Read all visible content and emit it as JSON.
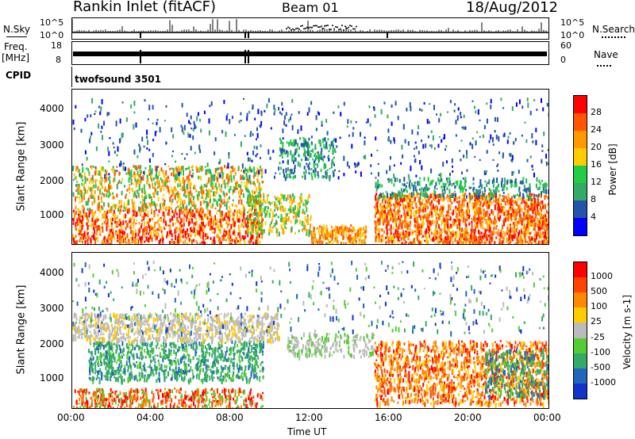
{
  "header": {
    "station": "Rankin Inlet (fitACF)",
    "beam": "Beam 01",
    "date": "18/Aug/2012"
  },
  "top_panels": {
    "nsky_label": "N.Sky",
    "nsky_ticks": [
      "10^5",
      "10^0"
    ],
    "nsearch_label": "N.Search",
    "nsearch_ticks": [
      "10^5",
      "10^0"
    ],
    "freq_label": "Freq.",
    "freq_unit": "[MHz]",
    "freq_ticks": [
      "18",
      "8"
    ],
    "nave_label": "Nave",
    "nave_ticks": [
      "60",
      "0"
    ],
    "cpid_label": "CPID",
    "cpid_value": "twofsound 3501"
  },
  "colors": {
    "power_scale": [
      "#0000ff",
      "#2255aa",
      "#33aa66",
      "#22cc44",
      "#ffcc00",
      "#ff9900",
      "#ff5500",
      "#ff0000"
    ],
    "velocity_scale": [
      "#1133cc",
      "#2266bb",
      "#33aa66",
      "#55cc33",
      "#bbbbbb",
      "#ffcc00",
      "#ff8800",
      "#ff4400",
      "#ff0000"
    ]
  },
  "chart_data": [
    {
      "type": "heatmap",
      "panel": "power",
      "ylabel": "Slant Range [km]",
      "ylim": [
        180,
        4500
      ],
      "yticks": [
        "1000",
        "2000",
        "3000",
        "4000"
      ],
      "xlabel": "Time UT",
      "xticks": [
        "00:00",
        "04:00",
        "08:00",
        "12:00",
        "16:00",
        "20:00",
        "00:00"
      ],
      "colorbar_label": "Power [dB]",
      "colorbar_ticks": [
        "4",
        "8",
        "12",
        "16",
        "20",
        "24",
        "28"
      ]
    },
    {
      "type": "heatmap",
      "panel": "velocity",
      "ylabel": "Slant Range [km]",
      "ylim": [
        180,
        4500
      ],
      "yticks": [
        "1000",
        "2000",
        "3000",
        "4000"
      ],
      "xlabel": "Time UT",
      "xticks": [
        "00:00",
        "04:00",
        "08:00",
        "12:00",
        "16:00",
        "20:00",
        "00:00"
      ],
      "colorbar_label": "Velocity [m s-1]",
      "colorbar_ticks": [
        "1000",
        "500",
        "100",
        "25",
        "-25",
        "-100",
        "-500",
        "-1000"
      ]
    }
  ]
}
